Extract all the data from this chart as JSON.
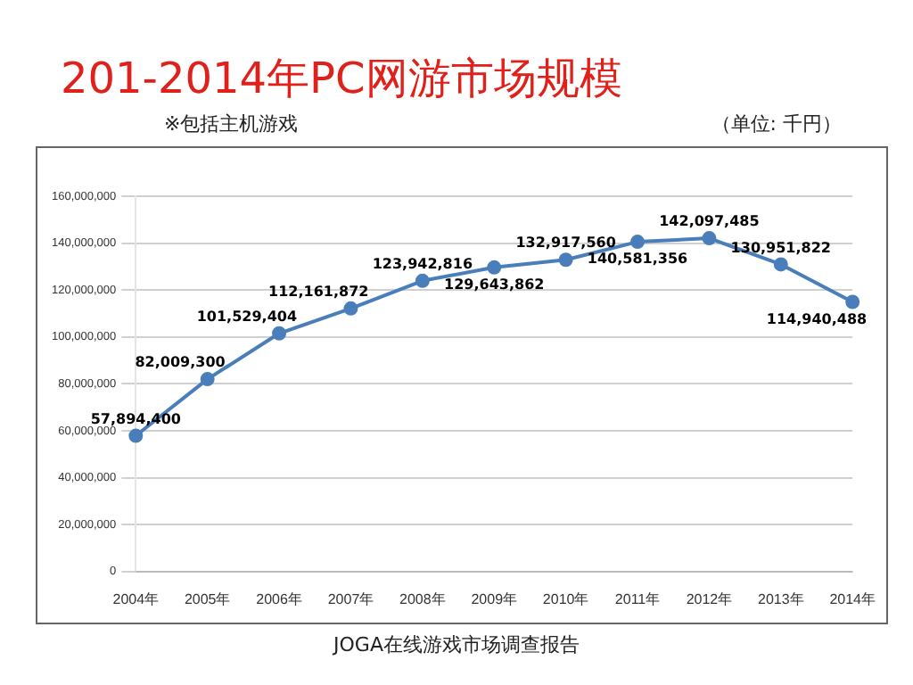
{
  "chart_data": {
    "type": "line",
    "title": "201-2014年PC网游市场规模",
    "subtitle": "※包括主机游戏",
    "annotations": [
      "（单位: 千円）",
      "JOGA在线游戏市场调查报告"
    ],
    "categories": [
      "2004年",
      "2005年",
      "2006年",
      "2007年",
      "2008年",
      "2009年",
      "2010年",
      "2011年",
      "2012年",
      "2013年",
      "2014年"
    ],
    "series": [
      {
        "color": "#4a7ebb",
        "values": [
          57894400,
          82009300,
          101529404,
          112161872,
          123942816,
          129643862,
          132917560,
          140581356,
          142097485,
          130951822,
          114940488
        ],
        "value_labels": [
          "57,894,400",
          "82,009,300",
          "101,529,404",
          "112,161,872",
          "123,942,816",
          "129,643,862",
          "132,917,560",
          "140,581,356",
          "142,097,485",
          "130,951,822",
          "114,940,488"
        ]
      }
    ],
    "ylim": [
      0,
      160000000
    ],
    "yticks": [
      0,
      {
        "value": 20000000,
        "label": "20,000,000"
      },
      {
        "value": 40000000,
        "label": "40,000,000"
      },
      {
        "value": 60000000,
        "label": "60,000,000"
      },
      {
        "value": 80000000,
        "label": "80,000,000"
      },
      {
        "value": 100000000,
        "label": "100,000,000"
      },
      {
        "value": 120000000,
        "label": "120,000,000"
      },
      {
        "value": 140000000,
        "label": "140,000,000"
      },
      {
        "value": 160000000,
        "label": "160,000,000"
      }
    ],
    "grid": "y",
    "legend": false,
    "marker": "circle",
    "line_style": "solid"
  }
}
